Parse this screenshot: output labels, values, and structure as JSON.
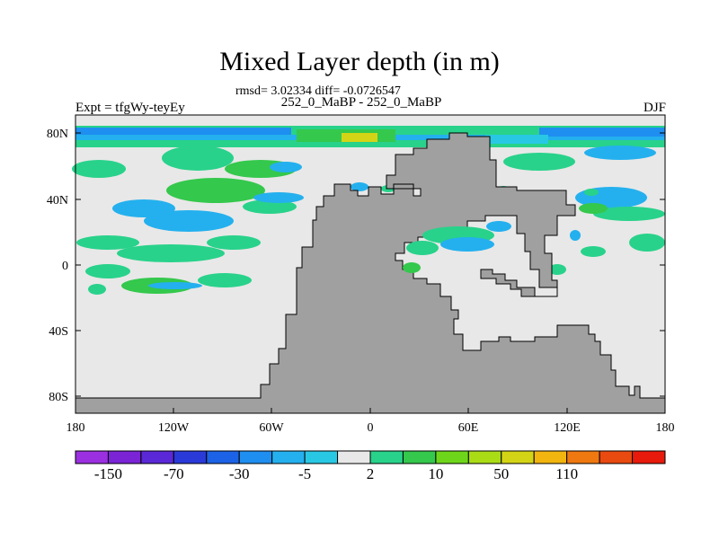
{
  "title": "Mixed Layer depth (in m)",
  "stats": "rmsd= 3.02334 diff= -0.0726547",
  "subtitle": "252_0_MaBP - 252_0_MaBP",
  "left_label": "Expt = tfgWy-teyEy",
  "right_label": "DJF",
  "lat_ticks": [
    "80N",
    "40N",
    "0",
    "40S",
    "80S"
  ],
  "lon_ticks": [
    "180",
    "120W",
    "60W",
    "0",
    "60E",
    "120E",
    "180"
  ],
  "colorbar": {
    "colors": [
      "#9b30e0",
      "#7a24d6",
      "#5a28d6",
      "#2a3ad8",
      "#1c62e6",
      "#1e8ef0",
      "#24b0ee",
      "#28c8e4",
      "#e8e8e8",
      "#28d28a",
      "#34c84c",
      "#6ed61a",
      "#aadc16",
      "#d4d416",
      "#f2b40e",
      "#f07810",
      "#e84a10",
      "#e81a0c"
    ],
    "labels": [
      "-150",
      "-70",
      "-30",
      "-5",
      "2",
      "10",
      "50",
      "110"
    ]
  },
  "map_colors": {
    "ocean": "#e8e8e8",
    "land": "#a0a0a0"
  }
}
